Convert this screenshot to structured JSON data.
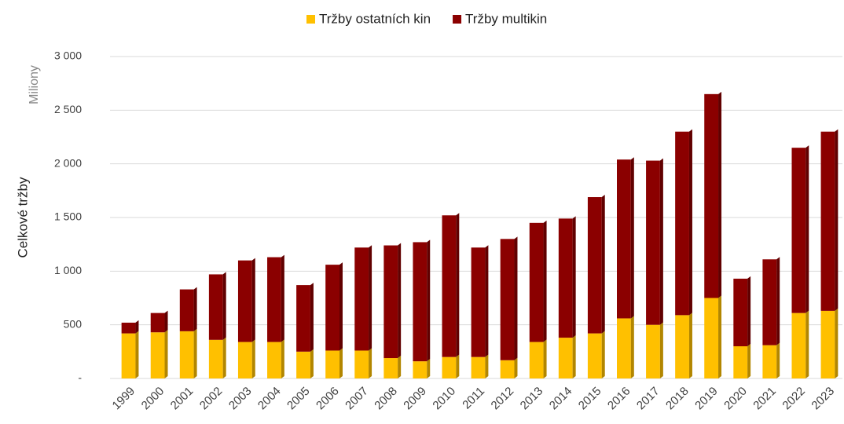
{
  "chart_data": {
    "type": "bar",
    "stacked": true,
    "y_axis_label": "Celkové tržby",
    "y_axis_unit": "Miliony",
    "categories": [
      "1999",
      "2000",
      "2001",
      "2002",
      "2003",
      "2004",
      "2005",
      "2006",
      "2007",
      "2008",
      "2009",
      "2010",
      "2011",
      "2012",
      "2013",
      "2014",
      "2015",
      "2016",
      "2017",
      "2018",
      "2019",
      "2020",
      "2021",
      "2022",
      "2023"
    ],
    "series": [
      {
        "name": "Tržby ostatních kin",
        "color": "#ffc000",
        "values": [
          420,
          430,
          440,
          360,
          340,
          340,
          250,
          260,
          260,
          190,
          160,
          200,
          200,
          170,
          340,
          380,
          420,
          560,
          500,
          590,
          750,
          300,
          310,
          610,
          630
        ]
      },
      {
        "name": "Tržby multikin",
        "color": "#8b0000",
        "values": [
          100,
          180,
          390,
          610,
          760,
          790,
          620,
          800,
          960,
          1050,
          1110,
          1320,
          1020,
          1130,
          1110,
          1110,
          1270,
          1480,
          1530,
          1710,
          1900,
          630,
          800,
          1540,
          1670
        ]
      }
    ],
    "ylim": [
      0,
      3000
    ],
    "yticks": [
      {
        "value": 0,
        "label": "-"
      },
      500,
      {
        "value": 1000,
        "label": "1 000"
      },
      {
        "value": 1500,
        "label": "1 500"
      },
      {
        "value": 2000,
        "label": "2 000"
      },
      {
        "value": 2500,
        "label": "2 500"
      },
      {
        "value": 3000,
        "label": "3 000"
      }
    ],
    "grid": true,
    "legend": "top"
  }
}
